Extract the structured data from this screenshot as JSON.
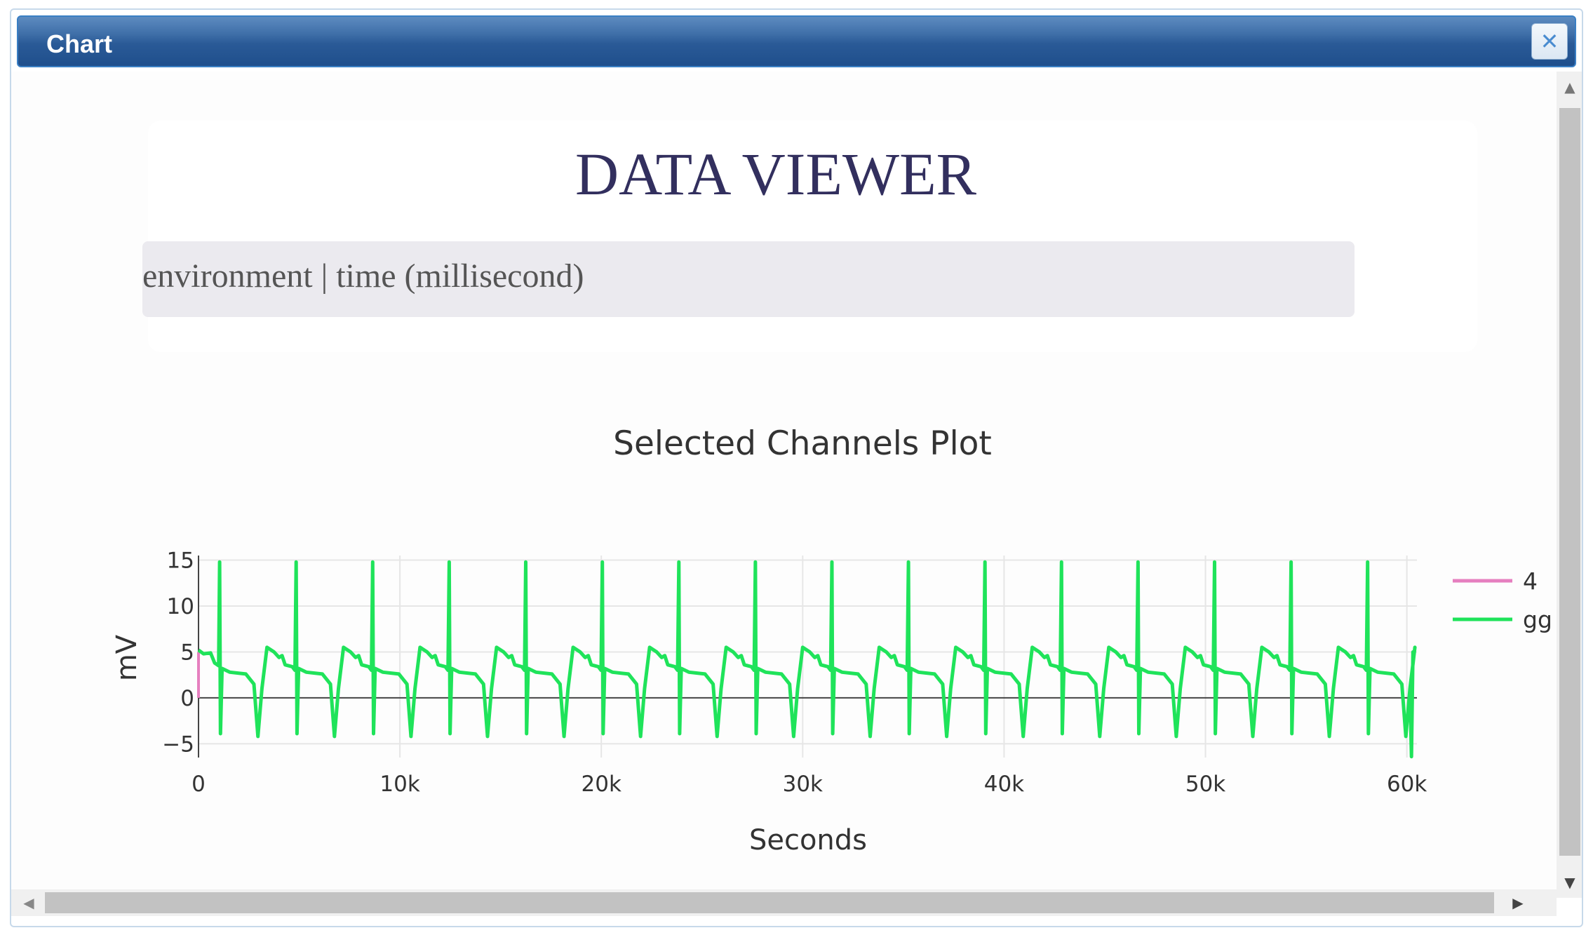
{
  "window": {
    "title": "Chart",
    "close_icon": "close-icon"
  },
  "viewer": {
    "title": "DATA VIEWER",
    "environment_text": "environment | time (millisecond)"
  },
  "chart_data": {
    "type": "line",
    "title": "Selected Channels Plot",
    "xlabel": "Seconds",
    "ylabel": "mV",
    "xlim": [
      0,
      60500
    ],
    "ylim": [
      -6.5,
      15.5
    ],
    "x_ticks": [
      0,
      10000,
      20000,
      30000,
      40000,
      50000,
      60000
    ],
    "x_tick_labels": [
      "0",
      "10k",
      "20k",
      "30k",
      "40k",
      "50k",
      "60k"
    ],
    "y_ticks": [
      -5,
      0,
      5,
      10,
      15
    ],
    "y_tick_labels": [
      "−5",
      "0",
      "5",
      "10",
      "15"
    ],
    "grid": true,
    "legend_position": "right",
    "series": [
      {
        "name": "4",
        "color": "#e67fbf",
        "x": [
          0,
          0,
          0
        ],
        "y": [
          0,
          5,
          3
        ]
      },
      {
        "name": "gg",
        "color": "#1fe35a",
        "period": 3800,
        "spike_offset": 1050,
        "spike_peak": 14.8,
        "plateau_start": 5.5,
        "plateau_mid": 3.0,
        "plateau_end": 2.6,
        "trough": -4.2,
        "end_x": 60200
      }
    ]
  }
}
